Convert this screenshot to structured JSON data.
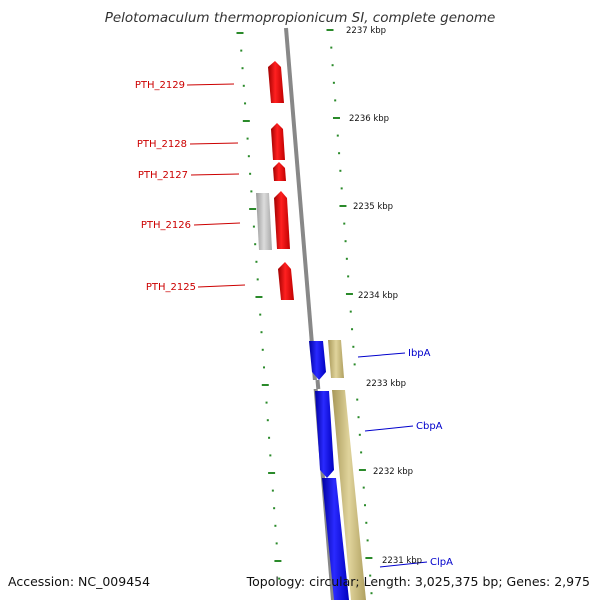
{
  "title": "Pelotomaculum thermopropionicum SI, complete genome",
  "accession": "Accession: NC_009454",
  "summary": "Topology: circular; Length: 3,025,375 bp; Genes: 2,975",
  "colors": {
    "red_gene": "#ff0000",
    "blue_gene": "#1a1aff",
    "gray_gene": "#c0c0c0",
    "feature_track": "#c8b87a",
    "backbone": "#8a8a8a",
    "tick": "#2a8a2a",
    "red_label": "#cc0000",
    "blue_label": "#0000cc"
  },
  "kbp_labels": [
    "2237 kbp",
    "2236 kbp",
    "2235 kbp",
    "2234 kbp",
    "2233 kbp",
    "2232 kbp",
    "2231 kbp"
  ],
  "genes_left": [
    "PTH_2129",
    "PTH_2128",
    "PTH_2127",
    "PTH_2126",
    "PTH_2125"
  ],
  "genes_right": [
    "IbpA",
    "CbpA",
    "ClpA"
  ]
}
